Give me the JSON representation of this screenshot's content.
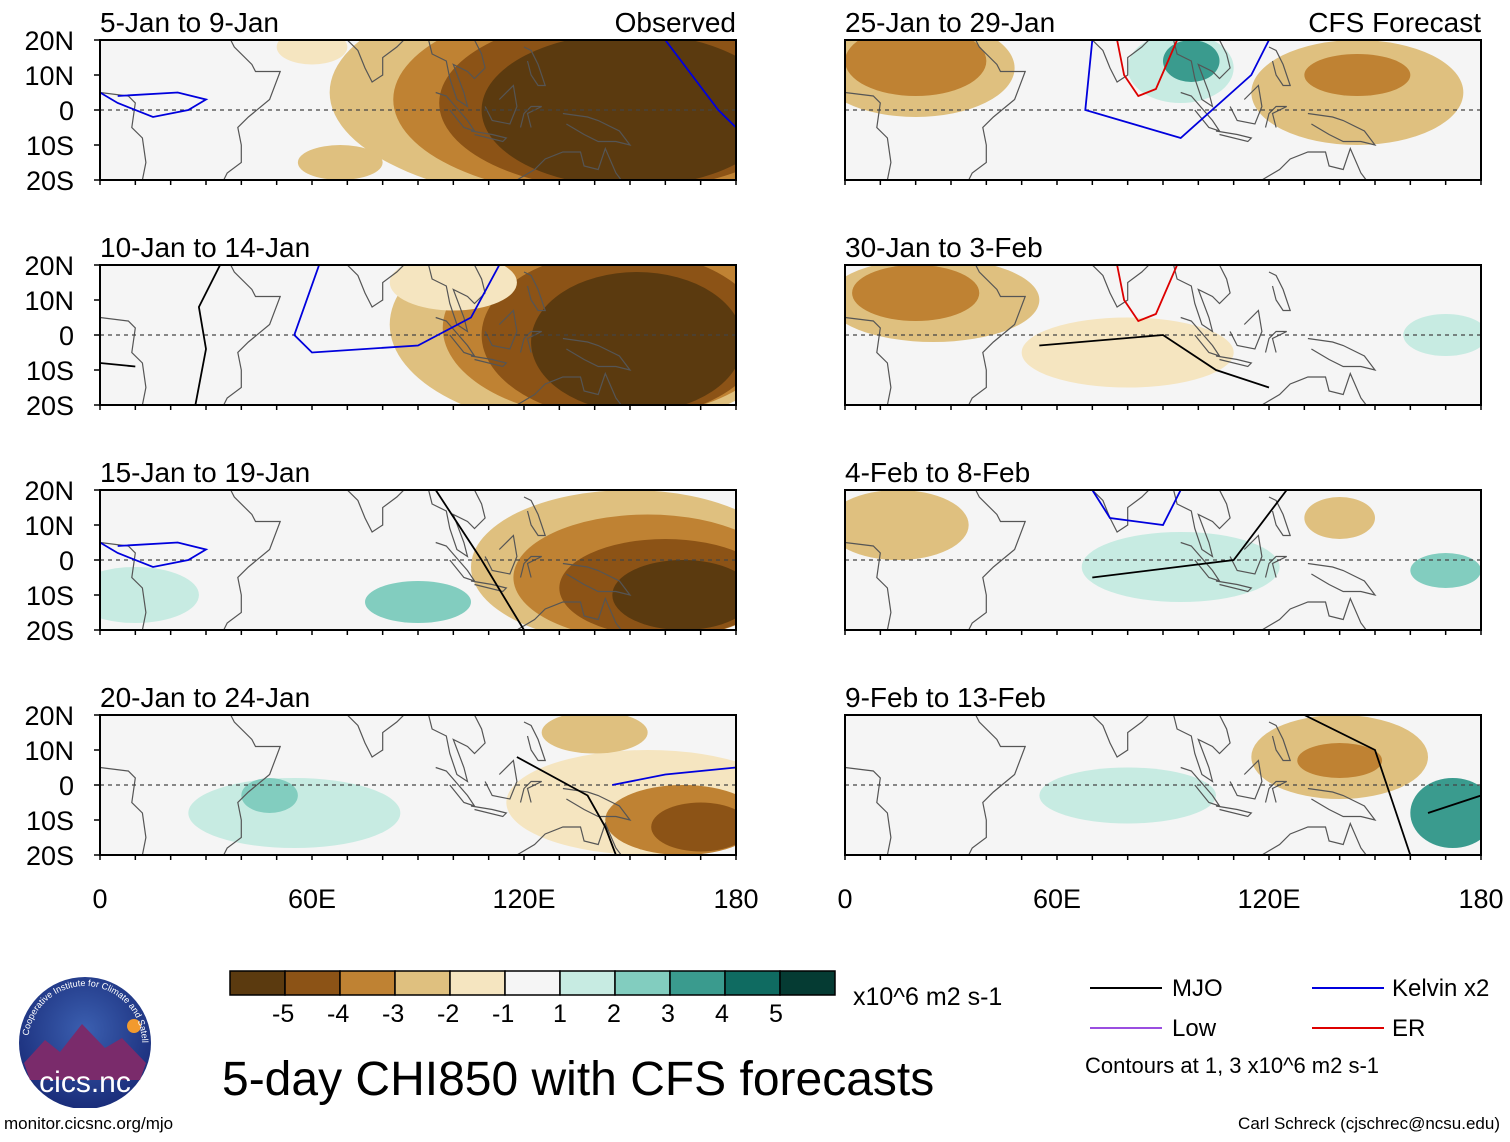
{
  "title": "5-day CHI850 with CFS forecasts",
  "units": "x10^6 m2 s-1",
  "source_url": "monitor.cicsnc.org/mjo",
  "credit": "Carl Schreck (cjschrec@ncsu.edu)",
  "logo": {
    "text": "cics.nc",
    "arc_text": "Cooperative Institute for Climate and Satellites"
  },
  "colorbar": {
    "labels": [
      "-5",
      "-4",
      "-3",
      "-2",
      "-1",
      "1",
      "2",
      "3",
      "4",
      "5"
    ],
    "colors": [
      "#5b3a0f",
      "#8c5316",
      "#bf8233",
      "#dfc07f",
      "#f5e5c0",
      "#f5f5f5",
      "#c7ebe2",
      "#82cdbf",
      "#3a9b8e",
      "#0f6b61",
      "#053b33"
    ]
  },
  "legend": {
    "items": [
      {
        "label": "MJO",
        "color": "#000000"
      },
      {
        "label": "Kelvin x2",
        "color": "#0000dd"
      },
      {
        "label": "Low",
        "color": "#9a4de0"
      },
      {
        "label": "ER",
        "color": "#dd0000"
      }
    ],
    "note": "Contours at 1, 3 x10^6 m2 s-1"
  },
  "chart_data": {
    "type": "heatmap",
    "variable": "CHI850 anomaly (velocity potential at 850 hPa)",
    "lat_labels": [
      "20N",
      "10N",
      "0",
      "10S",
      "20S"
    ],
    "lon_labels": [
      "0",
      "60E",
      "120E",
      "180"
    ],
    "lon_range": [
      0,
      180
    ],
    "lat_range": [
      -20,
      20
    ],
    "color_levels": [
      -5,
      -4,
      -3,
      -2,
      -1,
      1,
      2,
      3,
      4,
      5
    ],
    "columns": [
      {
        "name": "Observed",
        "panels": [
          "5-Jan to 9-Jan",
          "10-Jan to 14-Jan",
          "15-Jan to 19-Jan",
          "20-Jan to 24-Jan"
        ]
      },
      {
        "name": "CFS Forecast",
        "panels": [
          "25-Jan to 29-Jan",
          "30-Jan to 3-Feb",
          "4-Feb to 8-Feb",
          "9-Feb to 13-Feb"
        ]
      }
    ],
    "panels": [
      {
        "label": "5-Jan to 9-Jan",
        "header": "Observed",
        "col": 0,
        "row": 0,
        "blobs": [
          {
            "lon": 140,
            "lat": 5,
            "rlon": 75,
            "rlat": 32,
            "level": -2
          },
          {
            "lon": 145,
            "lat": 3,
            "rlon": 62,
            "rlat": 28,
            "level": -3
          },
          {
            "lon": 148,
            "lat": 2,
            "rlon": 52,
            "rlat": 25,
            "level": -4
          },
          {
            "lon": 150,
            "lat": 0,
            "rlon": 42,
            "rlat": 22,
            "level": -5
          },
          {
            "lon": 68,
            "lat": -15,
            "rlon": 12,
            "rlat": 5,
            "level": -2
          },
          {
            "lon": 60,
            "lat": 18,
            "rlon": 10,
            "rlat": 5,
            "level": -1
          }
        ]
      },
      {
        "label": "10-Jan to 14-Jan",
        "header": "",
        "col": 0,
        "row": 1,
        "blobs": [
          {
            "lon": 140,
            "lat": 3,
            "rlon": 58,
            "rlat": 30,
            "level": -2
          },
          {
            "lon": 145,
            "lat": 2,
            "rlon": 48,
            "rlat": 26,
            "level": -3
          },
          {
            "lon": 148,
            "lat": 0,
            "rlon": 40,
            "rlat": 24,
            "level": -4
          },
          {
            "lon": 152,
            "lat": -2,
            "rlon": 30,
            "rlat": 20,
            "level": -5
          },
          {
            "lon": 100,
            "lat": 15,
            "rlon": 18,
            "rlat": 8,
            "level": -1
          }
        ]
      },
      {
        "label": "15-Jan to 19-Jan",
        "header": "",
        "col": 0,
        "row": 2,
        "blobs": [
          {
            "lon": 150,
            "lat": -2,
            "rlon": 45,
            "rlat": 22,
            "level": -2
          },
          {
            "lon": 155,
            "lat": -5,
            "rlon": 38,
            "rlat": 18,
            "level": -3
          },
          {
            "lon": 160,
            "lat": -8,
            "rlon": 30,
            "rlat": 14,
            "level": -4
          },
          {
            "lon": 165,
            "lat": -10,
            "rlon": 20,
            "rlat": 10,
            "level": -5
          },
          {
            "lon": 90,
            "lat": -12,
            "rlon": 15,
            "rlat": 6,
            "level": 2
          },
          {
            "lon": 10,
            "lat": -10,
            "rlon": 18,
            "rlat": 8,
            "level": 1
          }
        ]
      },
      {
        "label": "20-Jan to 24-Jan",
        "header": "",
        "col": 0,
        "row": 3,
        "blobs": [
          {
            "lon": 155,
            "lat": -5,
            "rlon": 40,
            "rlat": 15,
            "level": -1
          },
          {
            "lon": 165,
            "lat": -10,
            "rlon": 22,
            "rlat": 10,
            "level": -3
          },
          {
            "lon": 170,
            "lat": -12,
            "rlon": 14,
            "rlat": 7,
            "level": -4
          },
          {
            "lon": 140,
            "lat": 15,
            "rlon": 15,
            "rlat": 6,
            "level": -2
          },
          {
            "lon": 55,
            "lat": -8,
            "rlon": 30,
            "rlat": 10,
            "level": 1
          },
          {
            "lon": 48,
            "lat": -3,
            "rlon": 8,
            "rlat": 5,
            "level": 2
          }
        ]
      },
      {
        "label": "25-Jan to 29-Jan",
        "header": "CFS Forecast",
        "col": 1,
        "row": 0,
        "blobs": [
          {
            "lon": 20,
            "lat": 12,
            "rlon": 28,
            "rlat": 14,
            "level": -2
          },
          {
            "lon": 20,
            "lat": 14,
            "rlon": 20,
            "rlat": 10,
            "level": -3
          },
          {
            "lon": 145,
            "lat": 5,
            "rlon": 30,
            "rlat": 15,
            "level": -2
          },
          {
            "lon": 145,
            "lat": 10,
            "rlon": 15,
            "rlat": 6,
            "level": -3
          },
          {
            "lon": 95,
            "lat": 12,
            "rlon": 15,
            "rlat": 10,
            "level": 1
          },
          {
            "lon": 98,
            "lat": 14,
            "rlon": 8,
            "rlat": 6,
            "level": 3
          }
        ]
      },
      {
        "label": "30-Jan to 3-Feb",
        "header": "",
        "col": 1,
        "row": 1,
        "blobs": [
          {
            "lon": 25,
            "lat": 10,
            "rlon": 30,
            "rlat": 12,
            "level": -2
          },
          {
            "lon": 20,
            "lat": 12,
            "rlon": 18,
            "rlat": 8,
            "level": -3
          },
          {
            "lon": 80,
            "lat": -5,
            "rlon": 30,
            "rlat": 10,
            "level": -1
          },
          {
            "lon": 170,
            "lat": 0,
            "rlon": 12,
            "rlat": 6,
            "level": 1
          }
        ]
      },
      {
        "label": "4-Feb to 8-Feb",
        "header": "",
        "col": 1,
        "row": 2,
        "blobs": [
          {
            "lon": 15,
            "lat": 10,
            "rlon": 20,
            "rlat": 10,
            "level": -2
          },
          {
            "lon": 140,
            "lat": 12,
            "rlon": 10,
            "rlat": 6,
            "level": -2
          },
          {
            "lon": 95,
            "lat": -2,
            "rlon": 28,
            "rlat": 10,
            "level": 1
          },
          {
            "lon": 170,
            "lat": -3,
            "rlon": 10,
            "rlat": 5,
            "level": 2
          }
        ]
      },
      {
        "label": "9-Feb to 13-Feb",
        "header": "",
        "col": 1,
        "row": 3,
        "blobs": [
          {
            "lon": 140,
            "lat": 8,
            "rlon": 25,
            "rlat": 12,
            "level": -2
          },
          {
            "lon": 140,
            "lat": 7,
            "rlon": 12,
            "rlat": 5,
            "level": -3
          },
          {
            "lon": 80,
            "lat": -3,
            "rlon": 25,
            "rlat": 8,
            "level": 1
          },
          {
            "lon": 172,
            "lat": -8,
            "rlon": 12,
            "rlat": 10,
            "level": 3
          }
        ]
      }
    ]
  }
}
